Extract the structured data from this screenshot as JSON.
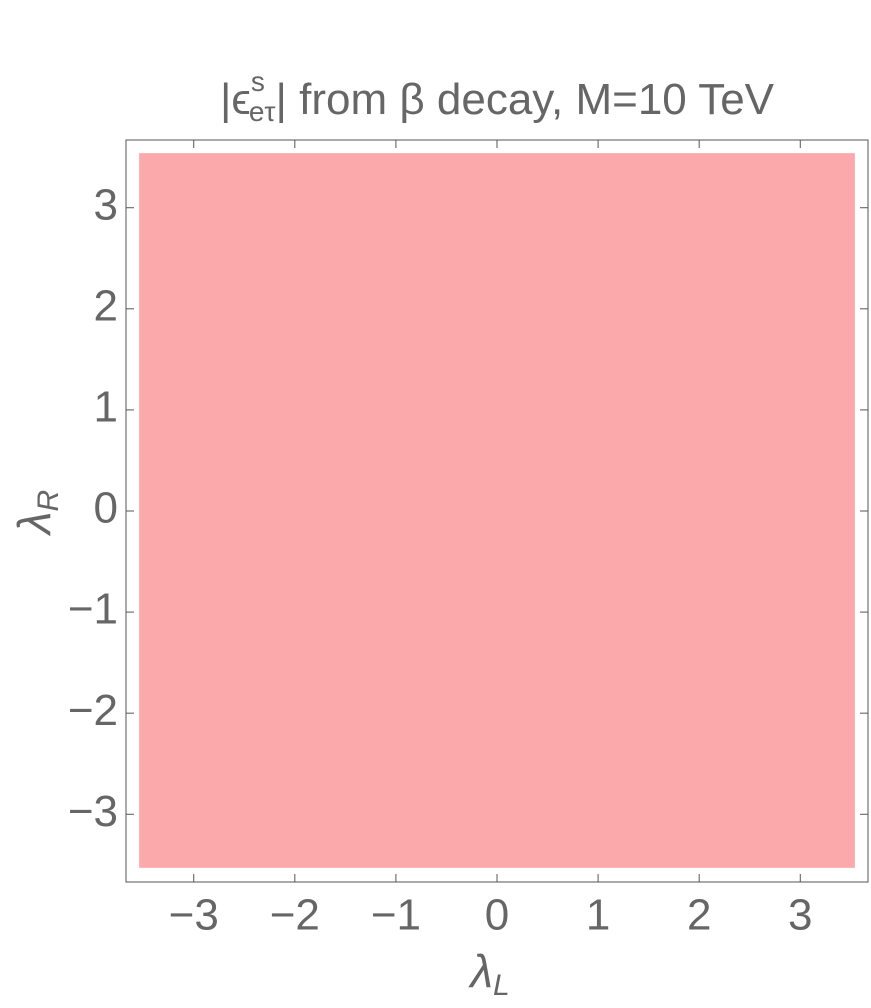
{
  "chart_data": {
    "type": "region",
    "title": {
      "open": "|ϵ",
      "sup": "s",
      "sub": "eτ",
      "rest": "| from β decay, M=10 TeV"
    },
    "x_label": {
      "symbol": "λ",
      "sub": "L"
    },
    "y_label": {
      "symbol": "λ",
      "sub": "R"
    },
    "xlim": [
      -3.67,
      3.67
    ],
    "ylim": [
      -3.67,
      3.67
    ],
    "xticks": [
      {
        "value": -3,
        "label": "−3"
      },
      {
        "value": -2,
        "label": "−2"
      },
      {
        "value": -1,
        "label": "−1"
      },
      0,
      1,
      2,
      3
    ],
    "yticks": [
      {
        "value": -3,
        "label": "−3"
      },
      {
        "value": -2,
        "label": "−2"
      },
      {
        "value": -1,
        "label": "−1"
      },
      0,
      1,
      2,
      3
    ],
    "region": {
      "color": "#fca9ab",
      "x": [
        -3.54,
        3.54
      ],
      "y": [
        -3.53,
        3.54
      ]
    }
  }
}
